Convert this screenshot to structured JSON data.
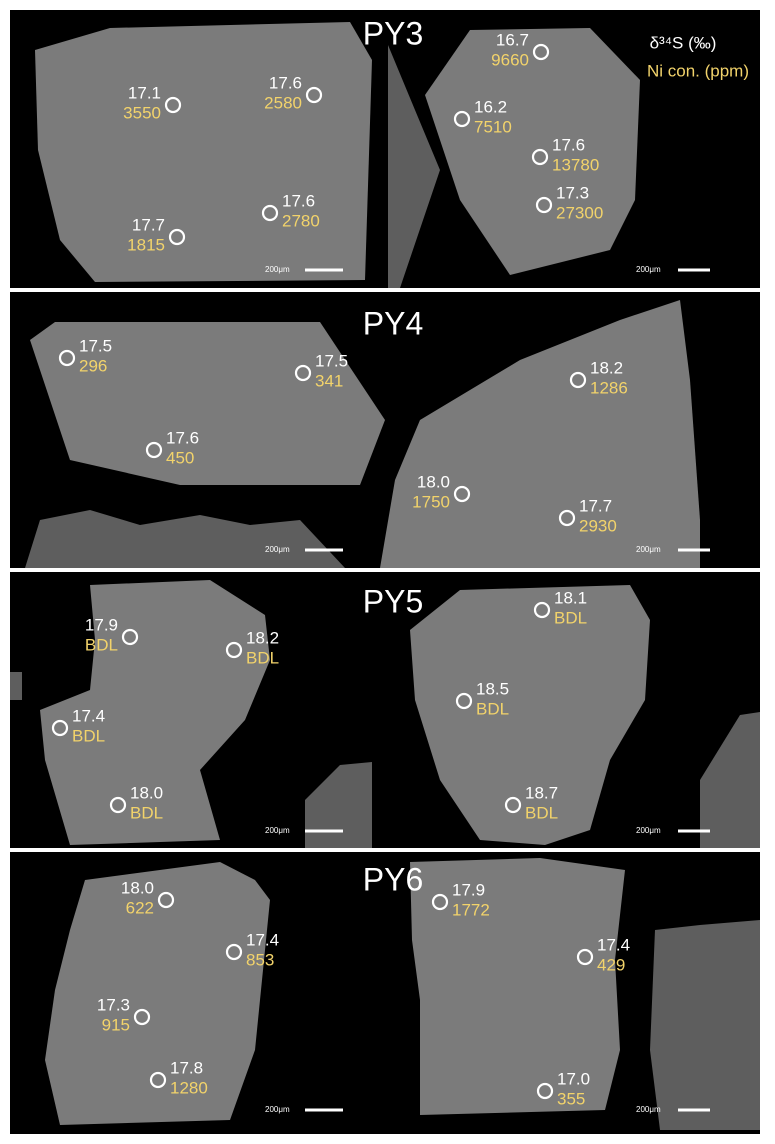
{
  "legend": {
    "isotope": "δ³⁴S (‰)",
    "nickel": "Ni con. (ppm)"
  },
  "panels": [
    {
      "title": "PY3",
      "scale_labels": [
        "200μm",
        "200μm"
      ],
      "spots": [
        {
          "d34s": "17.1",
          "ni": "3550"
        },
        {
          "d34s": "17.6",
          "ni": "2580"
        },
        {
          "d34s": "17.7",
          "ni": "1815"
        },
        {
          "d34s": "17.6",
          "ni": "2780"
        },
        {
          "d34s": "16.7",
          "ni": "9660"
        },
        {
          "d34s": "16.2",
          "ni": "7510"
        },
        {
          "d34s": "17.6",
          "ni": "13780"
        },
        {
          "d34s": "17.3",
          "ni": "27300"
        }
      ]
    },
    {
      "title": "PY4",
      "scale_labels": [
        "200μm",
        "200μm"
      ],
      "spots": [
        {
          "d34s": "17.5",
          "ni": "296"
        },
        {
          "d34s": "17.5",
          "ni": "341"
        },
        {
          "d34s": "17.6",
          "ni": "450"
        },
        {
          "d34s": "18.2",
          "ni": "1286"
        },
        {
          "d34s": "18.0",
          "ni": "1750"
        },
        {
          "d34s": "17.7",
          "ni": "2930"
        }
      ]
    },
    {
      "title": "PY5",
      "scale_labels": [
        "200μm",
        "200μm"
      ],
      "spots": [
        {
          "d34s": "17.9",
          "ni": "BDL"
        },
        {
          "d34s": "18.2",
          "ni": "BDL"
        },
        {
          "d34s": "17.4",
          "ni": "BDL"
        },
        {
          "d34s": "18.0",
          "ni": "BDL"
        },
        {
          "d34s": "18.1",
          "ni": "BDL"
        },
        {
          "d34s": "18.5",
          "ni": "BDL"
        },
        {
          "d34s": "18.7",
          "ni": "BDL"
        }
      ]
    },
    {
      "title": "PY6",
      "scale_labels": [
        "200μm",
        "200μm"
      ],
      "spots": [
        {
          "d34s": "18.0",
          "ni": "622"
        },
        {
          "d34s": "17.4",
          "ni": "853"
        },
        {
          "d34s": "17.3",
          "ni": "915"
        },
        {
          "d34s": "17.8",
          "ni": "1280"
        },
        {
          "d34s": "17.9",
          "ni": "1772"
        },
        {
          "d34s": "17.4",
          "ni": "429"
        },
        {
          "d34s": "17.0",
          "ni": "355"
        }
      ]
    }
  ]
}
